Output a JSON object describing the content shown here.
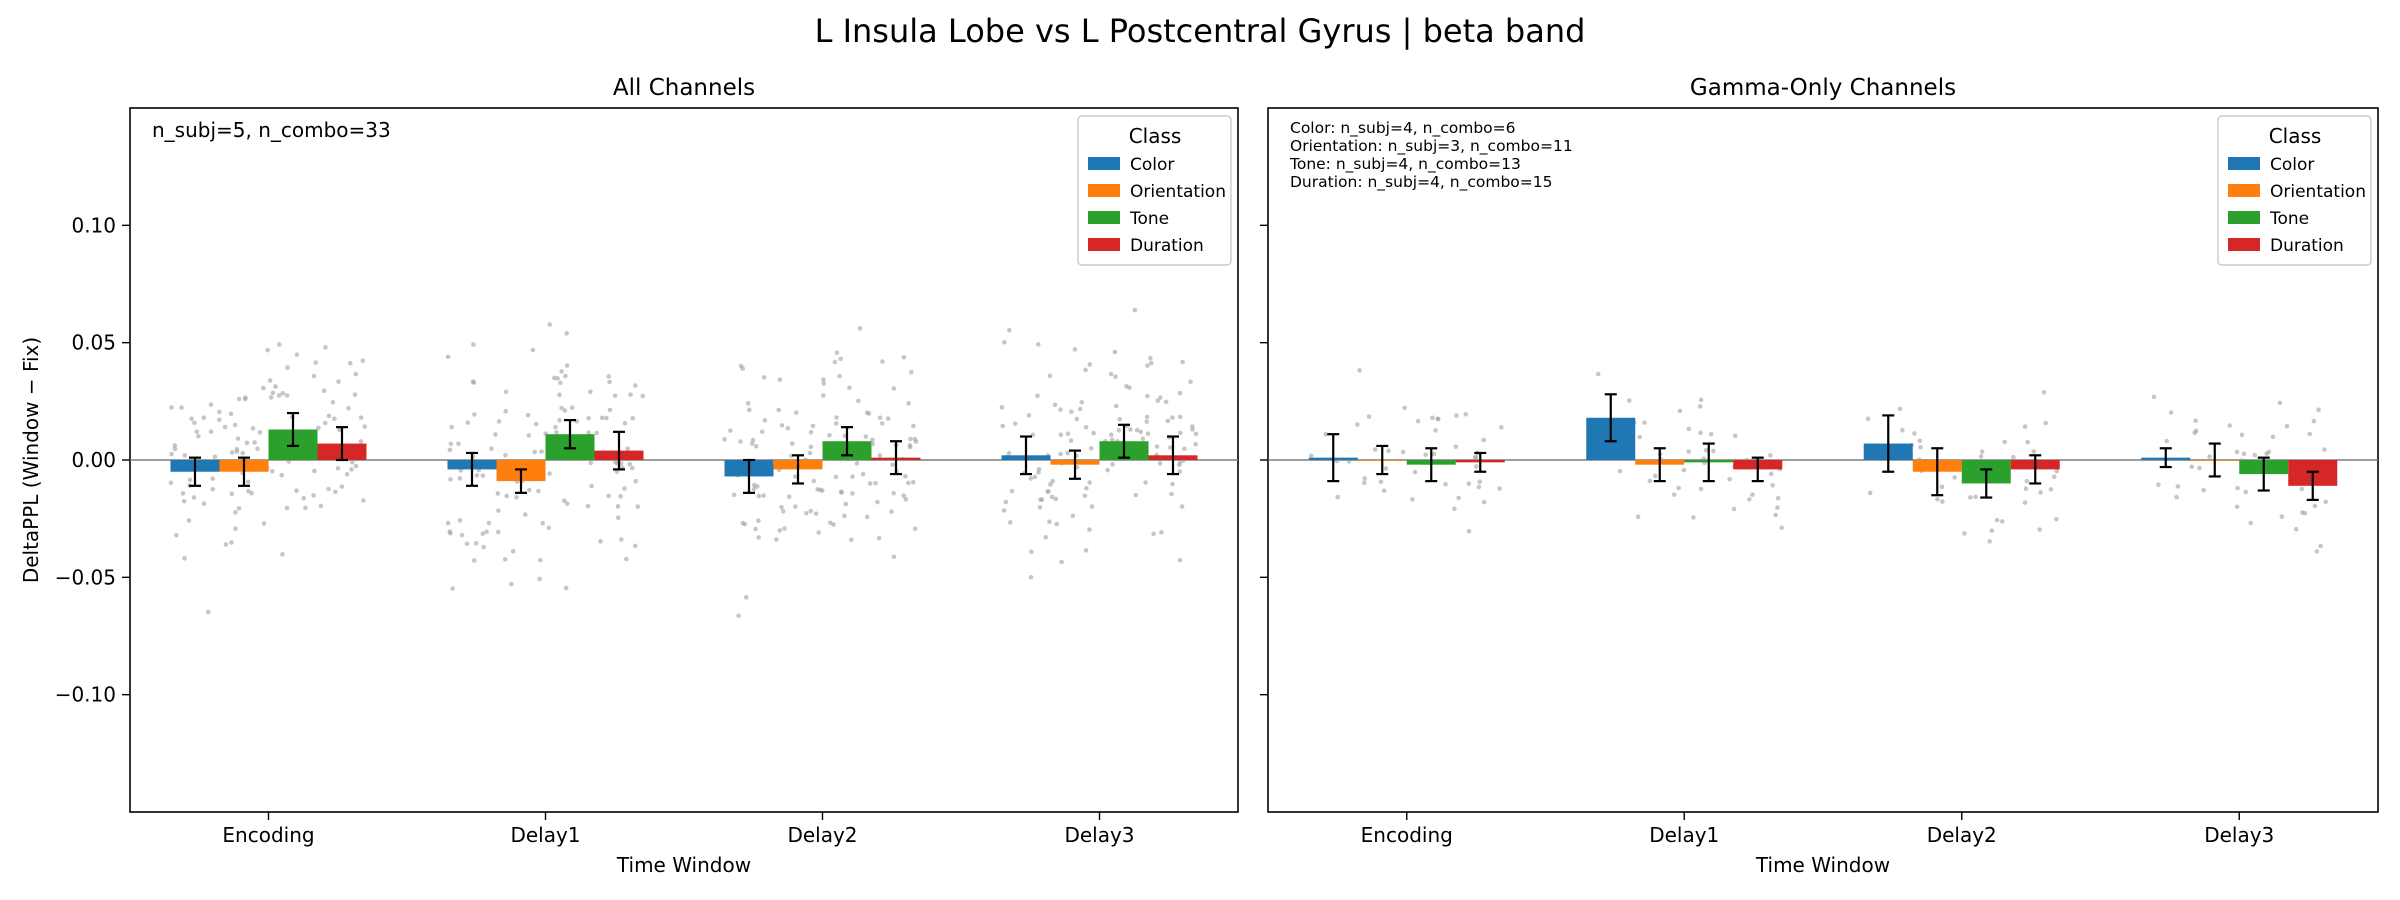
{
  "figure": {
    "title": "L Insula Lobe vs L Postcentral Gyrus  |  beta band",
    "ylabel": "DeltaPPL (Window − Fix)",
    "legend_title": "Class",
    "legend_placement": "top-right",
    "classes": [
      {
        "name": "Color",
        "color": "#1f77b4"
      },
      {
        "name": "Orientation",
        "color": "#ff7f0e"
      },
      {
        "name": "Tone",
        "color": "#2ca02c"
      },
      {
        "name": "Duration",
        "color": "#d62728"
      }
    ],
    "scatter_color": "#a0a0a0"
  },
  "chart_data": [
    {
      "type": "bar",
      "title": "All Channels",
      "xlabel": "Time Window",
      "ylabel": "DeltaPPL (Window − Fix)",
      "categories": [
        "Encoding",
        "Delay1",
        "Delay2",
        "Delay3"
      ],
      "ylim": [
        -0.15,
        0.15
      ],
      "yticks": [
        -0.1,
        -0.05,
        0.0,
        0.05,
        0.1
      ],
      "ytick_labels": [
        "−0.10",
        "−0.05",
        "0.00",
        "0.05",
        "0.10"
      ],
      "annotation": [
        "n_subj=5, n_combo=33"
      ],
      "series": [
        {
          "name": "Color",
          "values": [
            -0.005,
            -0.004,
            -0.007,
            0.002
          ],
          "errors": [
            0.006,
            0.007,
            0.007,
            0.008
          ]
        },
        {
          "name": "Orientation",
          "values": [
            -0.005,
            -0.009,
            -0.004,
            -0.002
          ],
          "errors": [
            0.006,
            0.005,
            0.006,
            0.006
          ]
        },
        {
          "name": "Tone",
          "values": [
            0.013,
            0.011,
            0.008,
            0.008
          ],
          "errors": [
            0.007,
            0.006,
            0.006,
            0.007
          ]
        },
        {
          "name": "Duration",
          "values": [
            0.007,
            0.004,
            0.001,
            0.002
          ],
          "errors": [
            0.007,
            0.008,
            0.007,
            0.008
          ]
        }
      ]
    },
    {
      "type": "bar",
      "title": "Gamma-Only Channels",
      "xlabel": "Time Window",
      "ylabel": "",
      "categories": [
        "Encoding",
        "Delay1",
        "Delay2",
        "Delay3"
      ],
      "ylim": [
        -0.15,
        0.15
      ],
      "yticks": [
        -0.1,
        -0.05,
        0.0,
        0.05,
        0.1
      ],
      "ytick_labels": [
        "",
        "",
        "",
        "",
        ""
      ],
      "annotation": [
        "Color: n_subj=4, n_combo=6",
        "Orientation: n_subj=3, n_combo=11",
        "Tone: n_subj=4, n_combo=13",
        "Duration: n_subj=4, n_combo=15"
      ],
      "series": [
        {
          "name": "Color",
          "values": [
            0.001,
            0.018,
            0.007,
            0.001
          ],
          "errors": [
            0.01,
            0.01,
            0.012,
            0.004
          ]
        },
        {
          "name": "Orientation",
          "values": [
            0.0,
            -0.002,
            -0.005,
            0.0
          ],
          "errors": [
            0.006,
            0.007,
            0.01,
            0.007
          ]
        },
        {
          "name": "Tone",
          "values": [
            -0.002,
            -0.001,
            -0.01,
            -0.006
          ],
          "errors": [
            0.007,
            0.008,
            0.006,
            0.007
          ]
        },
        {
          "name": "Duration",
          "values": [
            -0.001,
            -0.004,
            -0.004,
            -0.011
          ],
          "errors": [
            0.004,
            0.005,
            0.006,
            0.006
          ]
        }
      ]
    }
  ]
}
